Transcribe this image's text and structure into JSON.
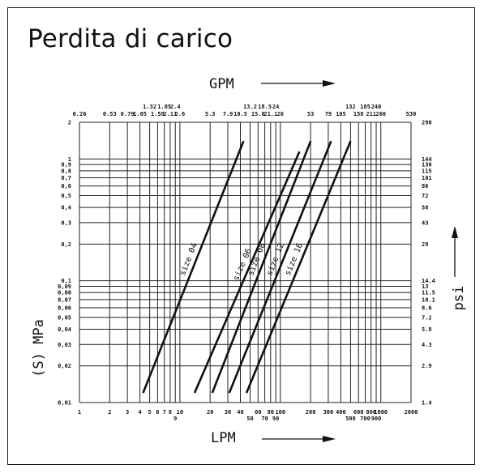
{
  "title": "Perdita di carico",
  "chart_data": {
    "type": "line",
    "title": "Perdita di carico",
    "scale": "log-log",
    "xlabel": "LPM",
    "x2label": "GPM",
    "ylabel": "(S) MPa",
    "y2label": "psi",
    "xlim": [
      1,
      2000
    ],
    "ylim": [
      0.01,
      2
    ],
    "grid": true,
    "x_ticks": [
      {
        "v": 1,
        "t": "1"
      },
      {
        "v": 2,
        "t": "2"
      },
      {
        "v": 3,
        "t": "3"
      },
      {
        "v": 4,
        "t": "4"
      },
      {
        "v": 5,
        "t": "5"
      },
      {
        "v": 6,
        "t": "6"
      },
      {
        "v": 7,
        "t": "7"
      },
      {
        "v": 8,
        "t": "8"
      },
      {
        "v": 9,
        "t": "9",
        "low": true
      },
      {
        "v": 10,
        "t": "10"
      },
      {
        "v": 20,
        "t": "20"
      },
      {
        "v": 30,
        "t": "30"
      },
      {
        "v": 40,
        "t": "40"
      },
      {
        "v": 50,
        "t": "50",
        "low": true
      },
      {
        "v": 60,
        "t": "60"
      },
      {
        "v": 70,
        "t": "70",
        "low": true
      },
      {
        "v": 80,
        "t": "80"
      },
      {
        "v": 90,
        "t": "90",
        "low": true
      },
      {
        "v": 100,
        "t": "100"
      },
      {
        "v": 200,
        "t": "200"
      },
      {
        "v": 300,
        "t": "300"
      },
      {
        "v": 400,
        "t": "400"
      },
      {
        "v": 500,
        "t": "500",
        "low": true
      },
      {
        "v": 600,
        "t": "600"
      },
      {
        "v": 700,
        "t": "700",
        "low": true
      },
      {
        "v": 800,
        "t": "800"
      },
      {
        "v": 900,
        "t": "900",
        "low": true
      },
      {
        "v": 1000,
        "t": "1000"
      },
      {
        "v": 2000,
        "t": "2000"
      }
    ],
    "x2_ticks": [
      {
        "v": 1,
        "t": "0.26"
      },
      {
        "v": 2,
        "t": "0.53"
      },
      {
        "v": 3,
        "t": "0.79"
      },
      {
        "v": 4,
        "t": "1.05"
      },
      {
        "v": 5,
        "t": "1.32",
        "high": true
      },
      {
        "v": 6,
        "t": "1.58"
      },
      {
        "v": 7,
        "t": "1.85",
        "high": true
      },
      {
        "v": 8,
        "t": "2.11"
      },
      {
        "v": 9,
        "t": "2.4",
        "high": true
      },
      {
        "v": 10,
        "t": "2.6"
      },
      {
        "v": 20,
        "t": "5.3"
      },
      {
        "v": 30,
        "t": "7.9"
      },
      {
        "v": 40,
        "t": "10.5"
      },
      {
        "v": 50,
        "t": "13.2",
        "high": true
      },
      {
        "v": 60,
        "t": "15.8"
      },
      {
        "v": 70,
        "t": "18.5",
        "high": true
      },
      {
        "v": 80,
        "t": "21.1"
      },
      {
        "v": 90,
        "t": "24",
        "high": true
      },
      {
        "v": 100,
        "t": "26"
      },
      {
        "v": 200,
        "t": "53"
      },
      {
        "v": 300,
        "t": "79"
      },
      {
        "v": 400,
        "t": "105"
      },
      {
        "v": 500,
        "t": "132",
        "high": true
      },
      {
        "v": 600,
        "t": "158"
      },
      {
        "v": 700,
        "t": "185",
        "high": true
      },
      {
        "v": 800,
        "t": "211"
      },
      {
        "v": 900,
        "t": "240",
        "high": true
      },
      {
        "v": 1000,
        "t": "260"
      },
      {
        "v": 2000,
        "t": "530"
      }
    ],
    "y_ticks": [
      {
        "v": 0.01,
        "t": "0,01"
      },
      {
        "v": 0.02,
        "t": "0,02"
      },
      {
        "v": 0.03,
        "t": "0,03"
      },
      {
        "v": 0.04,
        "t": "0,04"
      },
      {
        "v": 0.05,
        "t": "0,05"
      },
      {
        "v": 0.06,
        "t": "0,06"
      },
      {
        "v": 0.07,
        "t": "0,07"
      },
      {
        "v": 0.08,
        "t": "0,08"
      },
      {
        "v": 0.09,
        "t": "0,09"
      },
      {
        "v": 0.1,
        "t": "0,1"
      },
      {
        "v": 0.2,
        "t": "0,2"
      },
      {
        "v": 0.3,
        "t": "0,3"
      },
      {
        "v": 0.4,
        "t": "0,4"
      },
      {
        "v": 0.5,
        "t": "0,5"
      },
      {
        "v": 0.6,
        "t": "0,6"
      },
      {
        "v": 0.7,
        "t": "0,7"
      },
      {
        "v": 0.8,
        "t": "0,8"
      },
      {
        "v": 0.9,
        "t": "0,9"
      },
      {
        "v": 1,
        "t": "1"
      },
      {
        "v": 2,
        "t": "2"
      }
    ],
    "y2_ticks": [
      {
        "v": 0.01,
        "t": "1.4"
      },
      {
        "v": 0.02,
        "t": "2.9"
      },
      {
        "v": 0.03,
        "t": "4.3"
      },
      {
        "v": 0.04,
        "t": "5.8"
      },
      {
        "v": 0.05,
        "t": "7.2"
      },
      {
        "v": 0.06,
        "t": "8.6"
      },
      {
        "v": 0.07,
        "t": "10.1"
      },
      {
        "v": 0.08,
        "t": "11.5"
      },
      {
        "v": 0.09,
        "t": "13"
      },
      {
        "v": 0.1,
        "t": "14.4"
      },
      {
        "v": 0.2,
        "t": "29"
      },
      {
        "v": 0.3,
        "t": "43"
      },
      {
        "v": 0.4,
        "t": "58"
      },
      {
        "v": 0.5,
        "t": "72"
      },
      {
        "v": 0.6,
        "t": "86"
      },
      {
        "v": 0.7,
        "t": "101"
      },
      {
        "v": 0.8,
        "t": "115"
      },
      {
        "v": 0.9,
        "t": "130"
      },
      {
        "v": 1,
        "t": "144"
      },
      {
        "v": 2,
        "t": "290"
      }
    ],
    "series": [
      {
        "name": "size 04",
        "x": [
          4.3,
          43
        ],
        "y": [
          0.012,
          1.4
        ]
      },
      {
        "name": "size 06",
        "x": [
          14,
          155
        ],
        "y": [
          0.012,
          1.15
        ]
      },
      {
        "name": "size 08",
        "x": [
          21,
          200
        ],
        "y": [
          0.012,
          1.4
        ]
      },
      {
        "name": "size 12",
        "x": [
          31,
          320
        ],
        "y": [
          0.012,
          1.4
        ]
      },
      {
        "name": "size 16",
        "x": [
          46,
          500
        ],
        "y": [
          0.012,
          1.4
        ]
      }
    ]
  }
}
